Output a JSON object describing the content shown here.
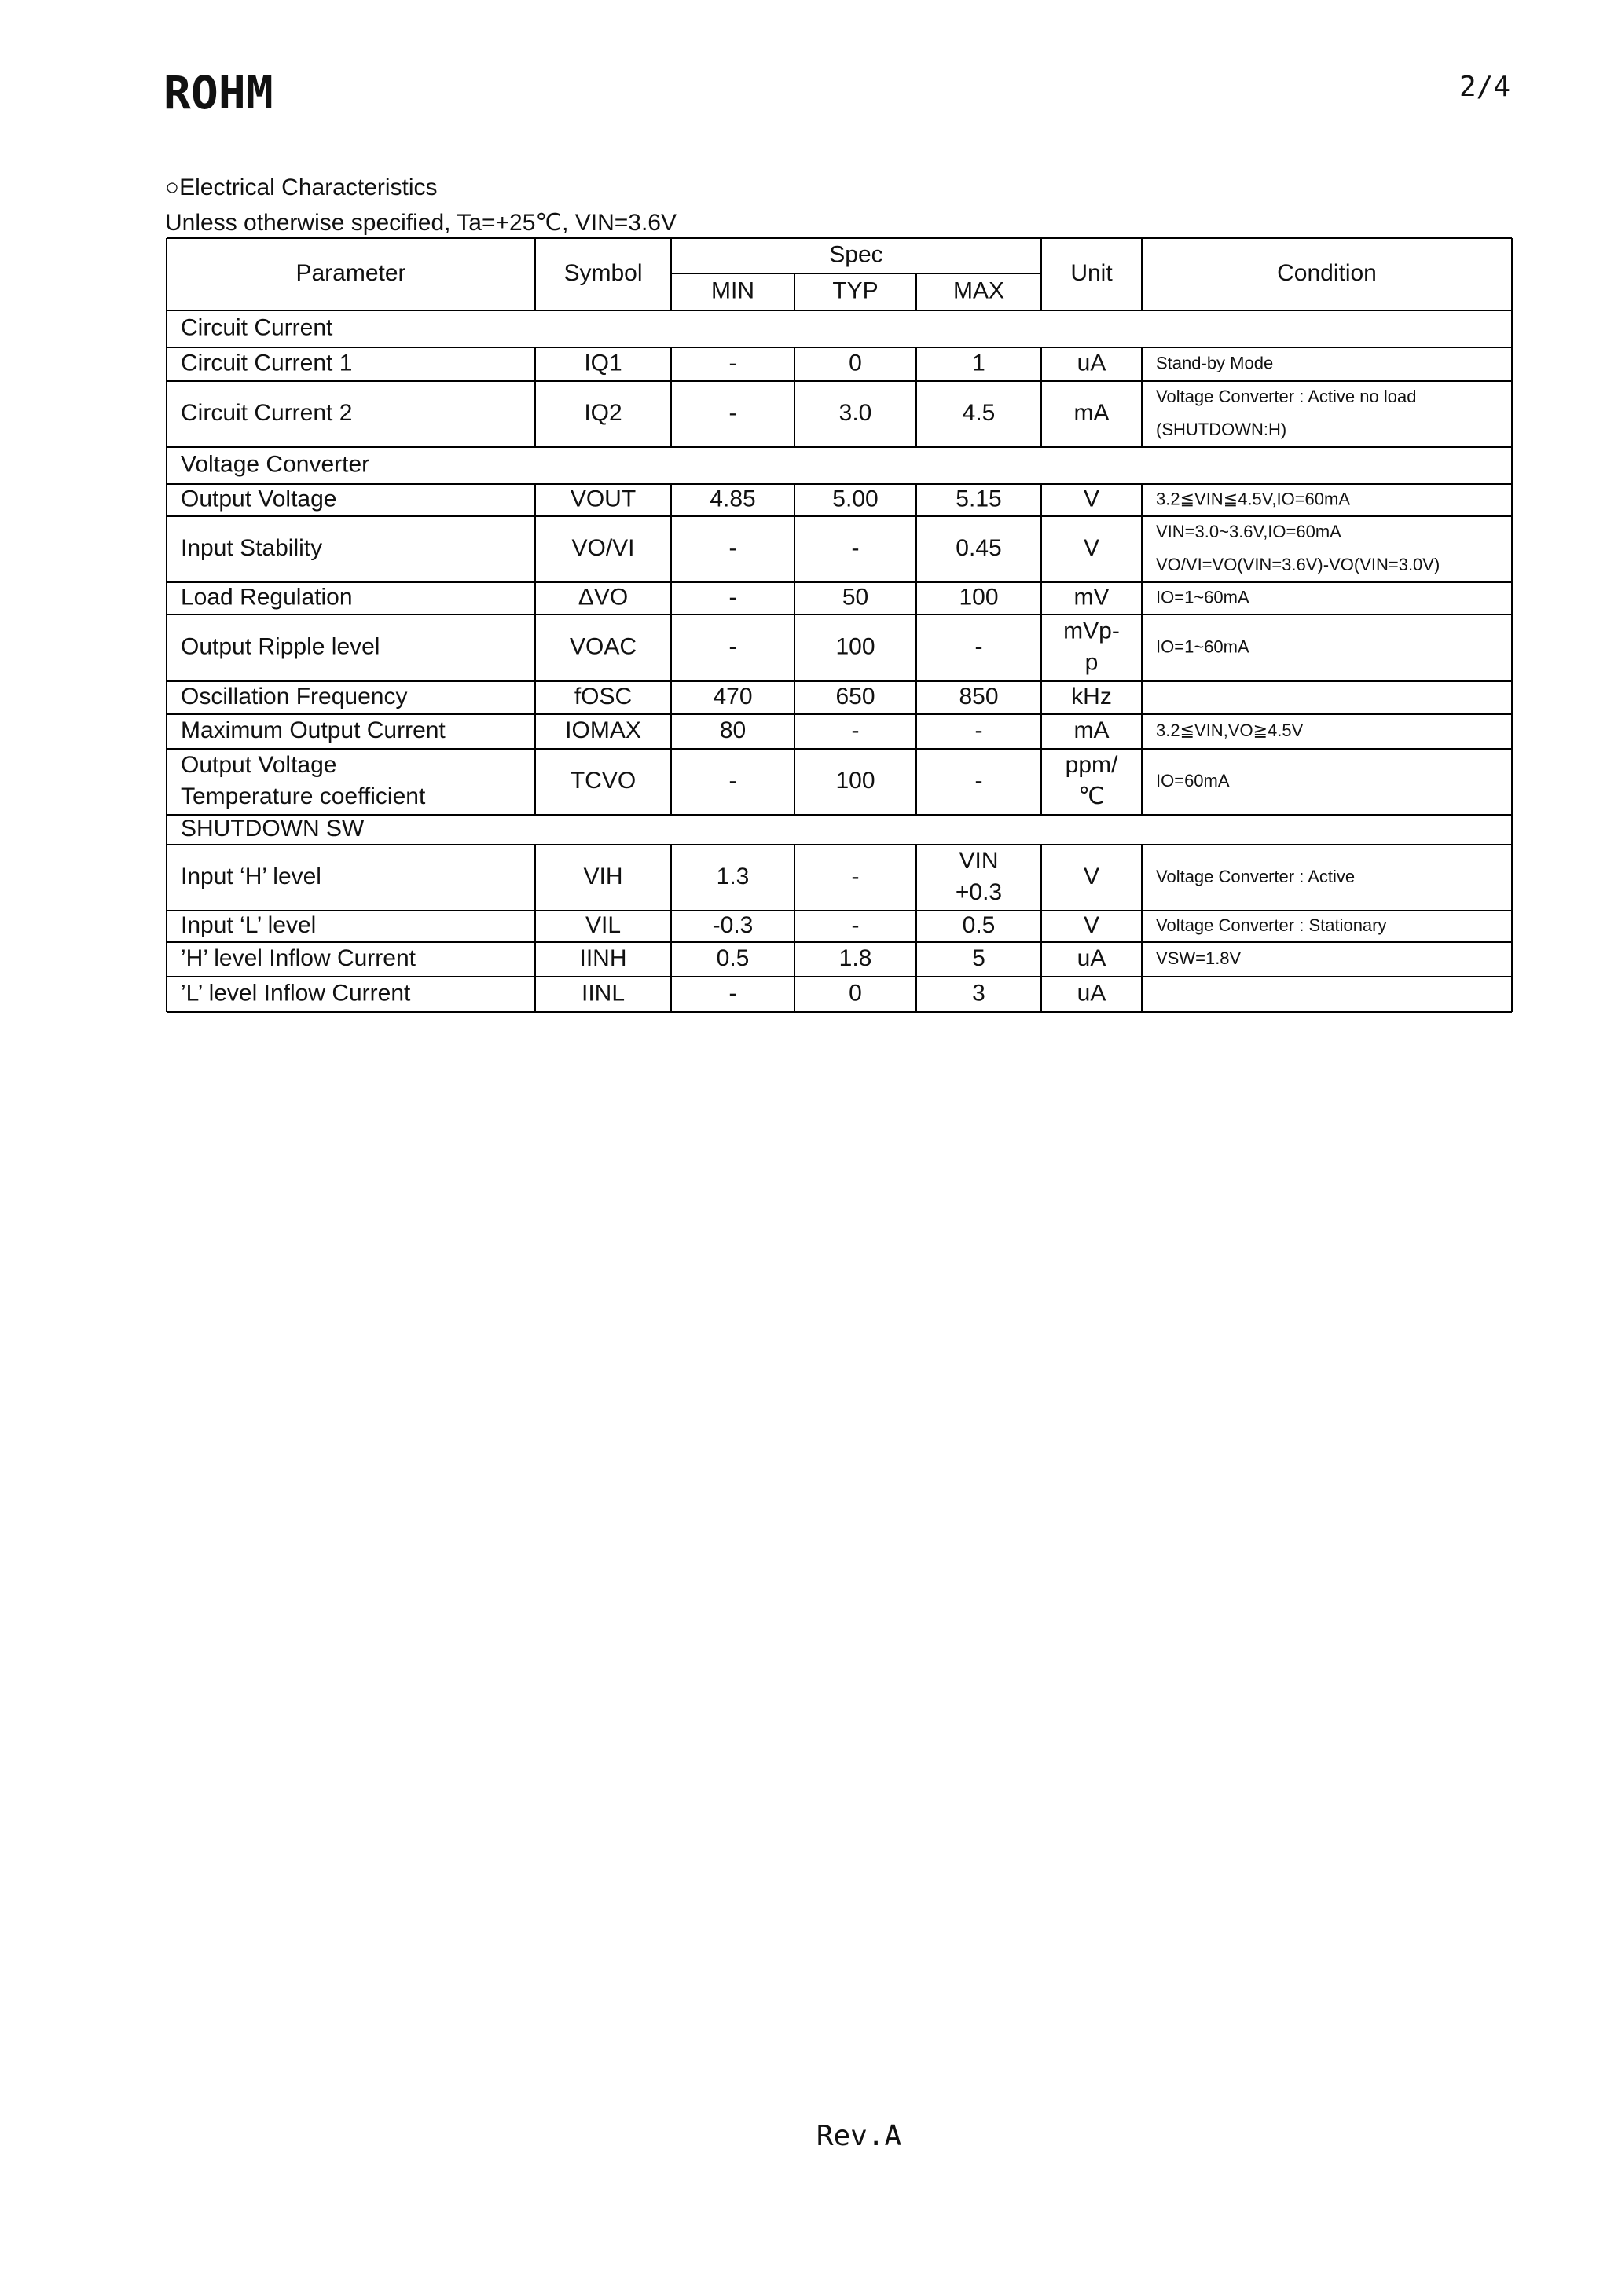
{
  "header": {
    "logo": "ROHM",
    "page": "2/4"
  },
  "section_title": "○Electrical Characteristics",
  "subtitle": "Unless otherwise specified, Ta=+25℃, VIN=3.6V",
  "table": {
    "headers": {
      "parameter": "Parameter",
      "symbol": "Symbol",
      "spec": "Spec",
      "min": "MIN",
      "typ": "TYP",
      "max": "MAX",
      "unit": "Unit",
      "condition": "Condition"
    },
    "rows": [
      {
        "section": "Circuit Current"
      },
      {
        "cells": [
          "Circuit Current 1",
          "IQ1",
          "-",
          "0",
          "1",
          "uA",
          "Stand-by Mode"
        ]
      },
      {
        "cells": [
          "Circuit Current 2",
          "IQ2",
          "-",
          "3.0",
          "4.5",
          "mA",
          [
            "Voltage Converter : Active no load",
            "(SHUTDOWN:H)"
          ]
        ]
      },
      {
        "section": "Voltage Converter"
      },
      {
        "cells": [
          "Output Voltage",
          "VOUT",
          "4.85",
          "5.00",
          "5.15",
          "V",
          "3.2≦VIN≦4.5V,IO=60mA"
        ]
      },
      {
        "cells": [
          "Input Stability",
          "VO/VI",
          "-",
          "-",
          "0.45",
          "V",
          [
            "VIN=3.0~3.6V,IO=60mA",
            "VO/VI=VO(VIN=3.6V)-VO(VIN=3.0V)"
          ]
        ]
      },
      {
        "cells": [
          "Load Regulation",
          "ΔVO",
          "-",
          "50",
          "100",
          "mV",
          "IO=1~60mA"
        ]
      },
      {
        "cells": [
          "Output Ripple level",
          "VOAC",
          "-",
          "100",
          "-",
          [
            "mVp-",
            "p"
          ],
          "IO=1~60mA"
        ]
      },
      {
        "cells": [
          "Oscillation Frequency",
          "fOSC",
          "470",
          "650",
          "850",
          "kHz",
          null
        ]
      },
      {
        "cells": [
          "Maximum Output Current",
          "IOMAX",
          "80",
          "-",
          "-",
          "mA",
          "3.2≦VIN,VO≧4.5V"
        ]
      },
      {
        "cells": [
          [
            "Output Voltage",
            "Temperature coefficient"
          ],
          "TCVO",
          "-",
          "100",
          "-",
          [
            "ppm/",
            "℃"
          ],
          "IO=60mA"
        ]
      },
      {
        "section": "SHUTDOWN SW"
      },
      {
        "cells": [
          "Input ‘H’ level",
          "VIH",
          "1.3",
          "-",
          [
            "VIN",
            "+0.3"
          ],
          "V",
          "Voltage Converter : Active"
        ]
      },
      {
        "cells": [
          "Input ‘L’ level",
          "VIL",
          "-0.3",
          "-",
          "0.5",
          "V",
          "Voltage Converter : Stationary"
        ]
      },
      {
        "cells": [
          "’H’ level Inflow Current",
          "IINH",
          "0.5",
          "1.8",
          "5",
          "uA",
          "VSW=1.8V"
        ]
      },
      {
        "cells": [
          "’L’ level Inflow Current",
          "IINL",
          "-",
          "0",
          "3",
          "uA",
          null
        ]
      }
    ]
  },
  "footer": "Rev.A"
}
